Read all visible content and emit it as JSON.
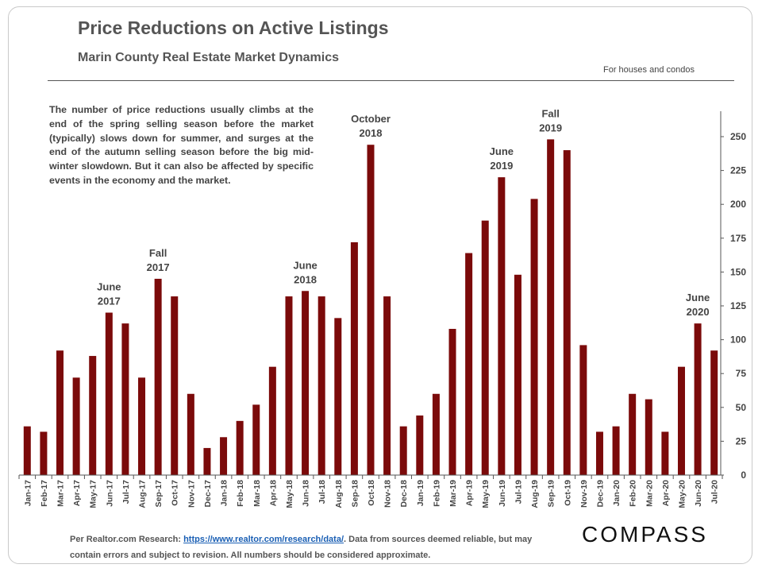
{
  "header": {
    "title": "Price Reductions on Active Listings",
    "subtitle": "Marin County Real Estate Market Dynamics",
    "scope_note": "For houses and condos"
  },
  "annotation_text": "The number of price reductions usually climbs at the end of the spring selling season before the market (typically) slows down for summer, and surges at the end of the autumn selling season before the big mid-winter slowdown. But it can also be affected by specific events in the economy and the market.",
  "footer": {
    "source_prefix": "Per Realtor.com  Research:",
    "source_link": "https://www.realtor.com/research/data/",
    "source_suffix": ". Data from sources deemed reliable, but may contain errors and subject to revision. All numbers should be considered approximate.",
    "logo": "COMPASS"
  },
  "colors": {
    "bar": "#7b0a0a",
    "axis": "#555555",
    "text": "#444444"
  },
  "chart_data": {
    "type": "bar",
    "title": "Price Reductions on Active Listings",
    "categories": [
      "Jan-17",
      "Feb-17",
      "Mar-17",
      "Apr-17",
      "May-17",
      "Jun-17",
      "Jul-17",
      "Aug-17",
      "Sep-17",
      "Oct-17",
      "Nov-17",
      "Dec-17",
      "Jan-18",
      "Feb-18",
      "Mar-18",
      "Apr-18",
      "May-18",
      "Jun-18",
      "Jul-18",
      "Aug-18",
      "Sep-18",
      "Oct-18",
      "Nov-18",
      "Dec-18",
      "Jan-19",
      "Feb-19",
      "Mar-19",
      "Apr-19",
      "May-19",
      "Jun-19",
      "Jul-19",
      "Aug-19",
      "Sep-19",
      "Oct-19",
      "Nov-19",
      "Dec-19",
      "Jan-20",
      "Feb-20",
      "Mar-20",
      "Apr-20",
      "May-20",
      "Jun-20",
      "Jul-20"
    ],
    "values": [
      36,
      32,
      92,
      72,
      88,
      120,
      112,
      72,
      145,
      132,
      60,
      20,
      28,
      40,
      52,
      80,
      132,
      136,
      132,
      116,
      172,
      244,
      132,
      36,
      44,
      60,
      108,
      164,
      188,
      220,
      148,
      204,
      248,
      240,
      96,
      32,
      36,
      60,
      56,
      32,
      80,
      112,
      92
    ],
    "yticks": [
      0,
      25,
      50,
      75,
      100,
      125,
      150,
      175,
      200,
      225,
      250
    ],
    "ylim": [
      0,
      265
    ],
    "y_axis_side": "right",
    "grid": false,
    "annotations": [
      {
        "category": "Jun-17",
        "lines": [
          "June",
          "2017"
        ]
      },
      {
        "category": "Sep-17",
        "lines": [
          "Fall",
          "2017"
        ]
      },
      {
        "category": "Jun-18",
        "lines": [
          "June",
          "2018"
        ]
      },
      {
        "category": "Oct-18",
        "lines": [
          "October",
          "2018"
        ]
      },
      {
        "category": "Jun-19",
        "lines": [
          "June",
          "2019"
        ]
      },
      {
        "category": "Sep-19",
        "lines": [
          "Fall",
          "2019"
        ]
      },
      {
        "category": "Jun-20",
        "lines": [
          "June",
          "2020"
        ]
      }
    ]
  }
}
